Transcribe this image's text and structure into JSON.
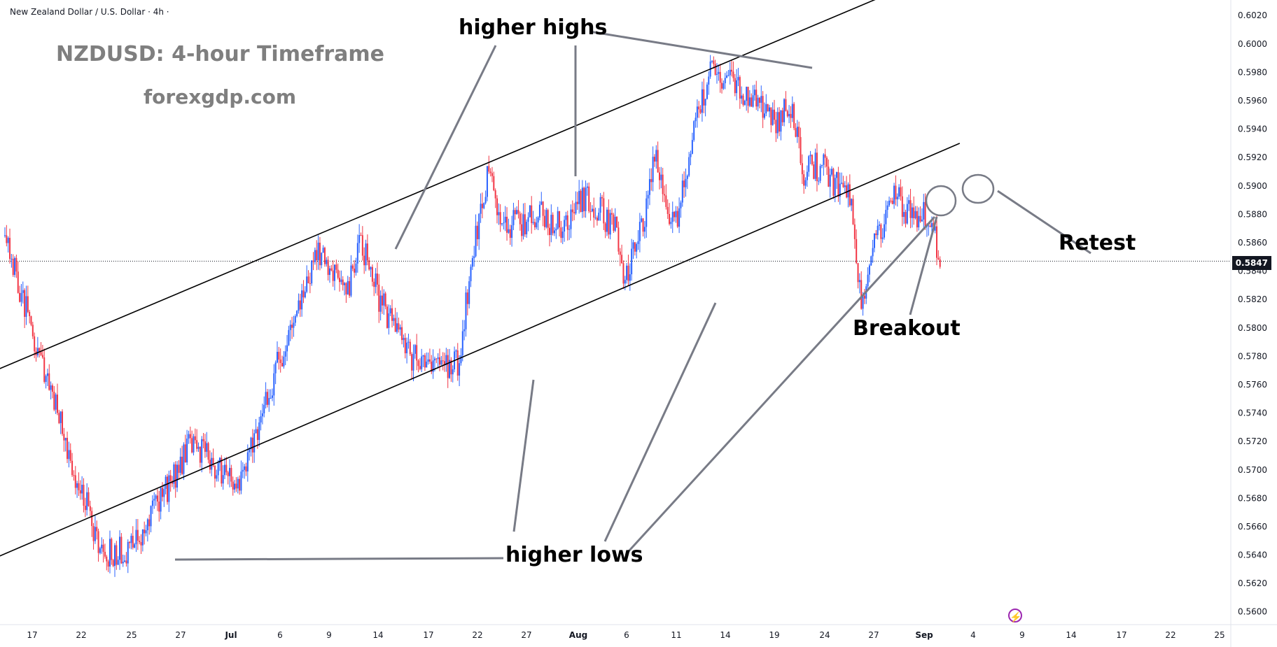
{
  "header": {
    "symbol_title": "New Zealand Dollar / U.S. Dollar · 4h ·"
  },
  "watermark": {
    "line1": "NZDUSD: 4-hour Timeframe",
    "line2": "forexgdp.com"
  },
  "annotations": {
    "higher_highs": "higher highs",
    "higher_lows": "higher lows",
    "breakout": "Breakout",
    "retest": "Retest"
  },
  "price_badge": "0.5847",
  "colors": {
    "up": "#2962ff",
    "down": "#f23645",
    "trendline": "#000000",
    "arrow": "#787b86"
  },
  "chart_data": {
    "type": "candlestick",
    "title": "New Zealand Dollar / U.S. Dollar · 4h",
    "current_price": 0.5847,
    "y_ticks": [
      "0.6020",
      "0.6000",
      "0.5980",
      "0.5960",
      "0.5940",
      "0.5920",
      "0.5900",
      "0.5880",
      "0.5860",
      "0.5840",
      "0.5820",
      "0.5800",
      "0.5780",
      "0.5760",
      "0.5740",
      "0.5720",
      "0.5700",
      "0.5680",
      "0.5660",
      "0.5640",
      "0.5620",
      "0.5600"
    ],
    "ylim": [
      0.5591,
      0.6028
    ],
    "x_ticks": [
      "17",
      "22",
      "25",
      "27",
      "Jul",
      "6",
      "9",
      "14",
      "17",
      "22",
      "27",
      "Aug",
      "6",
      "11",
      "14",
      "19",
      "24",
      "27",
      "Sep",
      "4",
      "9",
      "14",
      "17",
      "22",
      "25"
    ],
    "x_tick_months": [
      "Jul",
      "Aug",
      "Sep"
    ],
    "price_path": [
      {
        "d": 0,
        "p": 0.5862
      },
      {
        "d": 4,
        "p": 0.577
      },
      {
        "d": 7,
        "p": 0.57
      },
      {
        "d": 10,
        "p": 0.564
      },
      {
        "d": 13,
        "p": 0.5645
      },
      {
        "d": 16,
        "p": 0.568
      },
      {
        "d": 19,
        "p": 0.572
      },
      {
        "d": 22,
        "p": 0.57
      },
      {
        "d": 24,
        "p": 0.569
      },
      {
        "d": 27,
        "p": 0.576
      },
      {
        "d": 29,
        "p": 0.58
      },
      {
        "d": 32,
        "p": 0.5855
      },
      {
        "d": 35,
        "p": 0.583
      },
      {
        "d": 36,
        "p": 0.5865
      },
      {
        "d": 38,
        "p": 0.582
      },
      {
        "d": 41,
        "p": 0.578
      },
      {
        "d": 44,
        "p": 0.577
      },
      {
        "d": 46,
        "p": 0.5775
      },
      {
        "d": 48,
        "p": 0.587
      },
      {
        "d": 49,
        "p": 0.5905
      },
      {
        "d": 51,
        "p": 0.587
      },
      {
        "d": 54,
        "p": 0.588
      },
      {
        "d": 57,
        "p": 0.587
      },
      {
        "d": 59,
        "p": 0.5895
      },
      {
        "d": 62,
        "p": 0.587
      },
      {
        "d": 63,
        "p": 0.583
      },
      {
        "d": 65,
        "p": 0.588
      },
      {
        "d": 66,
        "p": 0.592
      },
      {
        "d": 68,
        "p": 0.587
      },
      {
        "d": 70,
        "p": 0.594
      },
      {
        "d": 72,
        "p": 0.5985
      },
      {
        "d": 74,
        "p": 0.597
      },
      {
        "d": 76,
        "p": 0.596
      },
      {
        "d": 78,
        "p": 0.5945
      },
      {
        "d": 80,
        "p": 0.5955
      },
      {
        "d": 81,
        "p": 0.591
      },
      {
        "d": 83,
        "p": 0.5915
      },
      {
        "d": 85,
        "p": 0.5895
      },
      {
        "d": 86,
        "p": 0.589
      },
      {
        "d": 87,
        "p": 0.5815
      },
      {
        "d": 88,
        "p": 0.585
      },
      {
        "d": 89,
        "p": 0.587
      },
      {
        "d": 90,
        "p": 0.5895
      },
      {
        "d": 92,
        "p": 0.588
      },
      {
        "d": 94,
        "p": 0.588
      },
      {
        "d": 95,
        "p": 0.5843
      }
    ],
    "trendlines": [
      {
        "name": "upper-channel",
        "p1": {
          "d": -2,
          "p": 0.5767
        },
        "p2": {
          "d": 89,
          "p": 0.6033
        }
      },
      {
        "name": "lower-channel",
        "p1": {
          "d": -6,
          "p": 0.5623
        },
        "p2": {
          "d": 97,
          "p": 0.593
        }
      }
    ]
  }
}
